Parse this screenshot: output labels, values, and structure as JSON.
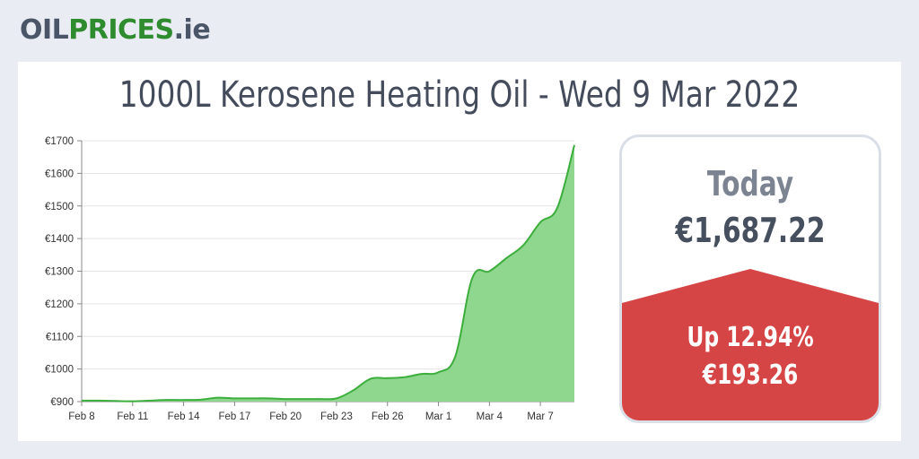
{
  "brand": {
    "part1": "OIL",
    "part2": "PRICES",
    "part3": ".ie"
  },
  "title": "1000L Kerosene Heating Oil - Wed 9 Mar 2022",
  "today": {
    "label": "Today",
    "price": "€1,687.22",
    "change_percent": "Up 12.94%",
    "change_amount": "€193.26"
  },
  "colors": {
    "line": "#3cae3c",
    "fill": "#8fd68f",
    "change_bg": "#d64545",
    "grid": "#e3e3e3"
  },
  "chart_data": {
    "type": "area",
    "title": "",
    "xlabel": "",
    "ylabel": "",
    "ylim": [
      900,
      1700
    ],
    "yticks": [
      900,
      1000,
      1100,
      1200,
      1300,
      1400,
      1500,
      1600,
      1700
    ],
    "ytick_labels": [
      "€900",
      "€1000",
      "€1100",
      "€1200",
      "€1300",
      "€1400",
      "€1500",
      "€1600",
      "€1700"
    ],
    "xticks": [
      "Feb 8",
      "Feb 11",
      "Feb 14",
      "Feb 17",
      "Feb 20",
      "Feb 23",
      "Feb 26",
      "Mar 1",
      "Mar 4",
      "Mar 7"
    ],
    "grid": true,
    "x": [
      "Feb 8",
      "Feb 9",
      "Feb 10",
      "Feb 11",
      "Feb 12",
      "Feb 13",
      "Feb 14",
      "Feb 15",
      "Feb 16",
      "Feb 17",
      "Feb 18",
      "Feb 19",
      "Feb 20",
      "Feb 21",
      "Feb 22",
      "Feb 23",
      "Feb 24",
      "Feb 25",
      "Feb 26",
      "Feb 27",
      "Feb 28",
      "Mar 1",
      "Mar 2",
      "Mar 3",
      "Mar 4",
      "Mar 5",
      "Mar 6",
      "Mar 7",
      "Mar 8",
      "Mar 9"
    ],
    "series": [
      {
        "values": [
          903,
          903,
          902,
          901,
          903,
          905,
          905,
          906,
          912,
          910,
          910,
          910,
          908,
          908,
          908,
          910,
          935,
          970,
          972,
          975,
          985,
          990,
          1040,
          1280,
          1300,
          1340,
          1380,
          1450,
          1495,
          1687
        ]
      }
    ]
  }
}
